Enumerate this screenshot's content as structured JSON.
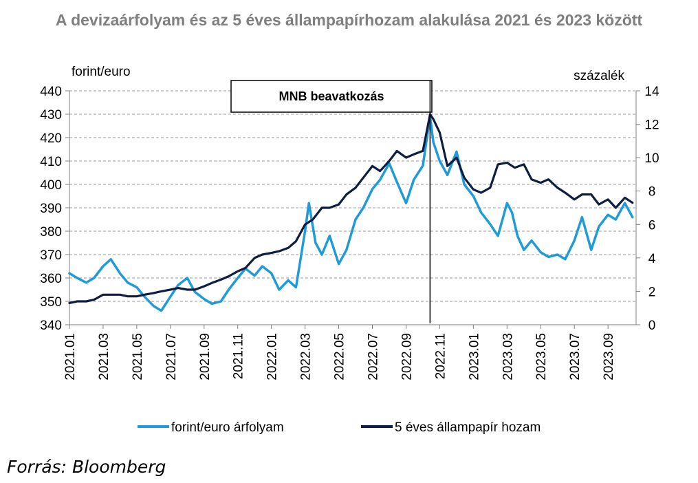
{
  "chart_data": {
    "type": "line",
    "title": "A devizaárfolyam és az 5 éves állampapírhozam alakulása 2021 és 2023 között",
    "left_unit": "forint/euro",
    "right_unit": "százalék",
    "ylim_left": [
      340,
      440
    ],
    "yticks_left": [
      340,
      350,
      360,
      370,
      380,
      390,
      400,
      410,
      420,
      430,
      440
    ],
    "ylim_right": [
      0,
      14
    ],
    "yticks_right": [
      0,
      2,
      4,
      6,
      8,
      10,
      12,
      14
    ],
    "x_range": [
      "2021.01",
      "2023.10"
    ],
    "x_tick_labels": [
      "2021.01",
      "2021.03",
      "2021.05",
      "2021.07",
      "2021.09",
      "2021.11",
      "2022.01",
      "2022.03",
      "2022.05",
      "2022.07",
      "2022.09",
      "2022.11",
      "2023.01",
      "2023.03",
      "2023.05",
      "2023.07",
      "2023.09"
    ],
    "grid": "horizontal dashed",
    "legend_position": "bottom",
    "annotation": {
      "label": "MNB beavatkozás",
      "x": "2022.10.14"
    },
    "series": [
      {
        "name": "forint/euro árfolyam",
        "axis": "left",
        "color": "#1f9bd7",
        "x": [
          "2021.01.01",
          "2021.01.15",
          "2021.02.01",
          "2021.02.15",
          "2021.03.01",
          "2021.03.15",
          "2021.04.01",
          "2021.04.15",
          "2021.05.01",
          "2021.05.15",
          "2021.06.01",
          "2021.06.15",
          "2021.07.01",
          "2021.07.15",
          "2021.08.01",
          "2021.08.15",
          "2021.09.01",
          "2021.09.15",
          "2021.10.01",
          "2021.10.15",
          "2021.11.01",
          "2021.11.15",
          "2021.12.01",
          "2021.12.15",
          "2022.01.01",
          "2022.01.15",
          "2022.02.01",
          "2022.02.15",
          "2022.03.01",
          "2022.03.08",
          "2022.03.20",
          "2022.04.01",
          "2022.04.15",
          "2022.05.01",
          "2022.05.15",
          "2022.06.01",
          "2022.06.15",
          "2022.07.01",
          "2022.07.15",
          "2022.08.01",
          "2022.08.15",
          "2022.09.01",
          "2022.09.15",
          "2022.10.01",
          "2022.10.14",
          "2022.10.20",
          "2022.11.01",
          "2022.11.15",
          "2022.12.01",
          "2022.12.15",
          "2023.01.01",
          "2023.01.15",
          "2023.02.01",
          "2023.02.15",
          "2023.03.01",
          "2023.03.10",
          "2023.03.20",
          "2023.04.01",
          "2023.04.15",
          "2023.05.01",
          "2023.05.15",
          "2023.06.01",
          "2023.06.15",
          "2023.07.01",
          "2023.07.15",
          "2023.08.01",
          "2023.08.15",
          "2023.09.01",
          "2023.09.15",
          "2023.10.01",
          "2023.10.15"
        ],
        "values": [
          362,
          360,
          358,
          360,
          365,
          368,
          362,
          358,
          356,
          352,
          348,
          346,
          352,
          357,
          360,
          354,
          351,
          349,
          350,
          355,
          360,
          364,
          361,
          365,
          362,
          355,
          359,
          356,
          380,
          392,
          375,
          370,
          378,
          366,
          372,
          385,
          390,
          398,
          402,
          409,
          401,
          392,
          402,
          408,
          429,
          418,
          410,
          404,
          414,
          400,
          395,
          388,
          383,
          378,
          392,
          388,
          378,
          372,
          376,
          371,
          369,
          370,
          368,
          376,
          386,
          372,
          382,
          387,
          385,
          392,
          386
        ]
      },
      {
        "name": "5 éves állampapír hozam",
        "axis": "right",
        "color": "#0e1e40",
        "x": [
          "2021.01.01",
          "2021.01.15",
          "2021.02.01",
          "2021.02.15",
          "2021.03.01",
          "2021.03.15",
          "2021.04.01",
          "2021.04.15",
          "2021.05.01",
          "2021.05.15",
          "2021.06.01",
          "2021.06.15",
          "2021.07.01",
          "2021.07.15",
          "2021.08.01",
          "2021.08.15",
          "2021.09.01",
          "2021.09.15",
          "2021.10.01",
          "2021.10.15",
          "2021.11.01",
          "2021.11.15",
          "2021.12.01",
          "2021.12.15",
          "2022.01.01",
          "2022.01.15",
          "2022.02.01",
          "2022.02.15",
          "2022.03.01",
          "2022.03.15",
          "2022.04.01",
          "2022.04.15",
          "2022.05.01",
          "2022.05.15",
          "2022.06.01",
          "2022.06.15",
          "2022.07.01",
          "2022.07.15",
          "2022.08.01",
          "2022.08.15",
          "2022.09.01",
          "2022.09.15",
          "2022.10.01",
          "2022.10.14",
          "2022.10.20",
          "2022.11.01",
          "2022.11.15",
          "2022.12.01",
          "2022.12.15",
          "2023.01.01",
          "2023.01.15",
          "2023.02.01",
          "2023.02.15",
          "2023.03.01",
          "2023.03.15",
          "2023.04.01",
          "2023.04.15",
          "2023.05.01",
          "2023.05.15",
          "2023.06.01",
          "2023.06.15",
          "2023.07.01",
          "2023.07.15",
          "2023.08.01",
          "2023.08.15",
          "2023.09.01",
          "2023.09.15",
          "2023.10.01",
          "2023.10.15"
        ],
        "values": [
          1.3,
          1.4,
          1.4,
          1.5,
          1.8,
          1.8,
          1.8,
          1.7,
          1.7,
          1.8,
          1.9,
          2.0,
          2.1,
          2.2,
          2.1,
          2.1,
          2.3,
          2.5,
          2.7,
          2.9,
          3.2,
          3.4,
          4.0,
          4.2,
          4.3,
          4.4,
          4.6,
          5.0,
          6.0,
          6.3,
          7.0,
          7.0,
          7.2,
          7.8,
          8.2,
          8.8,
          9.5,
          9.2,
          9.8,
          10.4,
          10.0,
          10.2,
          10.4,
          12.6,
          12.3,
          11.5,
          9.5,
          10.0,
          8.8,
          8.1,
          7.9,
          8.2,
          9.6,
          9.7,
          9.4,
          9.6,
          8.7,
          8.5,
          8.7,
          8.2,
          7.9,
          7.5,
          7.8,
          7.8,
          7.2,
          7.5,
          7.0,
          7.6,
          7.3
        ]
      }
    ]
  },
  "source": "Forrás: Bloomberg"
}
